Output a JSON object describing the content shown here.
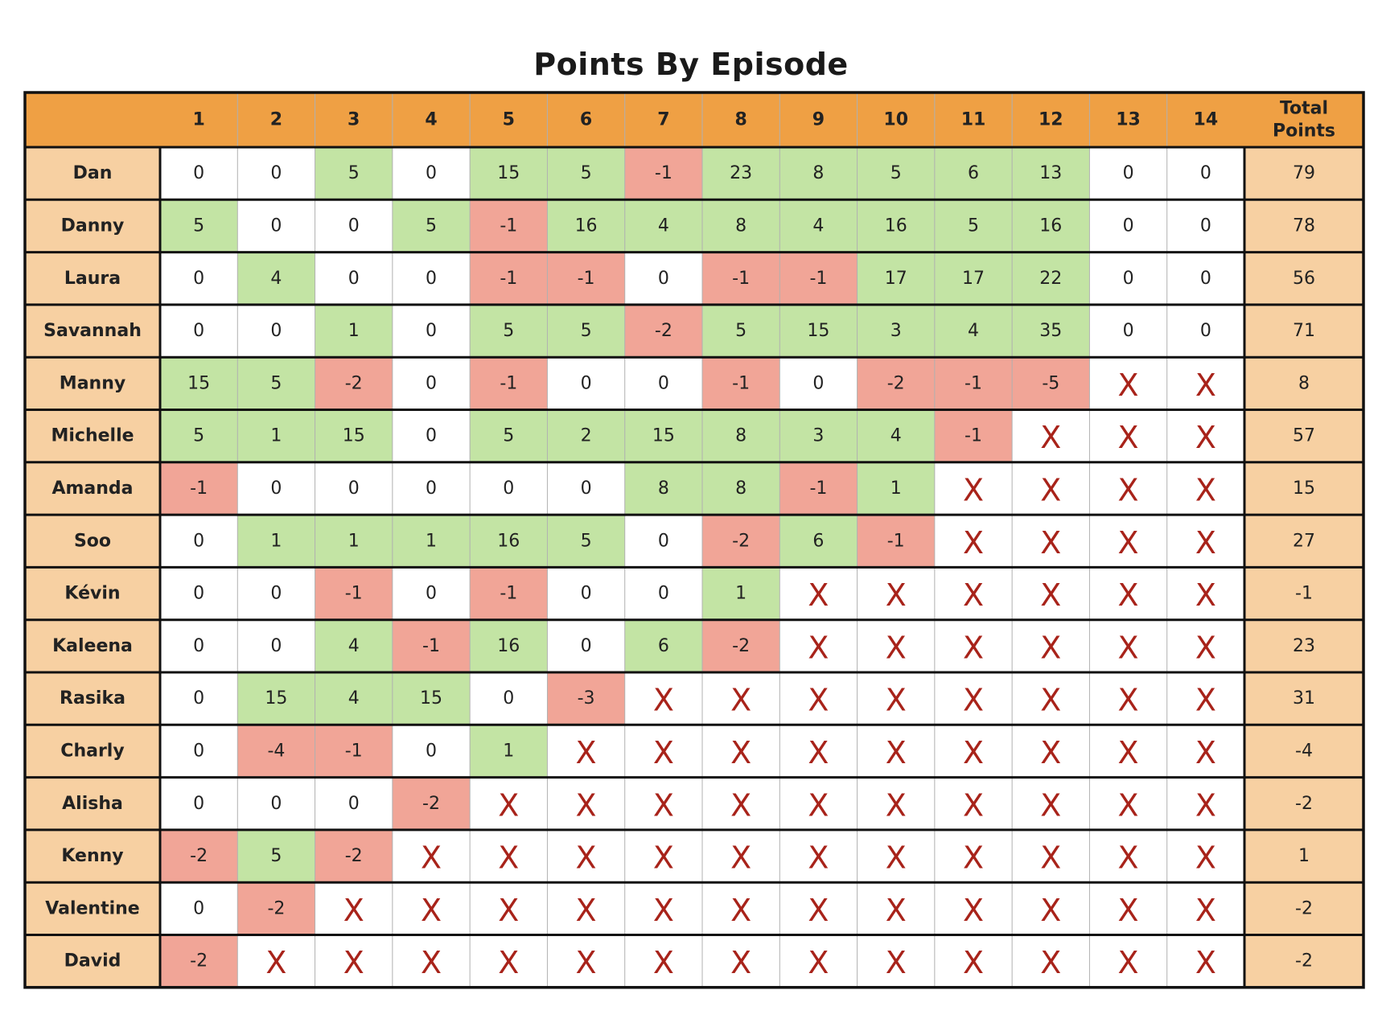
{
  "chart_data": {
    "type": "table",
    "title": "Points By Episode",
    "columns": [
      "1",
      "2",
      "3",
      "4",
      "5",
      "6",
      "7",
      "8",
      "9",
      "10",
      "11",
      "12",
      "13",
      "14"
    ],
    "total_header": [
      "Total",
      "Points"
    ],
    "eliminated_symbol": "X",
    "rows": [
      {
        "name": "Dan",
        "points": [
          0,
          0,
          5,
          0,
          15,
          5,
          -1,
          23,
          8,
          5,
          6,
          13,
          0,
          0
        ],
        "total": 79
      },
      {
        "name": "Danny",
        "points": [
          5,
          0,
          0,
          5,
          -1,
          16,
          4,
          8,
          4,
          16,
          5,
          16,
          0,
          0
        ],
        "total": 78
      },
      {
        "name": "Laura",
        "points": [
          0,
          4,
          0,
          0,
          -1,
          -1,
          0,
          -1,
          -1,
          17,
          17,
          22,
          0,
          0
        ],
        "total": 56
      },
      {
        "name": "Savannah",
        "points": [
          0,
          0,
          1,
          0,
          5,
          5,
          -2,
          5,
          15,
          3,
          4,
          35,
          0,
          0
        ],
        "total": 71
      },
      {
        "name": "Manny",
        "points": [
          15,
          5,
          -2,
          0,
          -1,
          0,
          0,
          -1,
          0,
          -2,
          -1,
          -5,
          null,
          null
        ],
        "total": 8
      },
      {
        "name": "Michelle",
        "points": [
          5,
          1,
          15,
          0,
          5,
          2,
          15,
          8,
          3,
          4,
          -1,
          null,
          null,
          null
        ],
        "total": 57
      },
      {
        "name": "Amanda",
        "points": [
          -1,
          0,
          0,
          0,
          0,
          0,
          8,
          8,
          -1,
          1,
          null,
          null,
          null,
          null
        ],
        "total": 15
      },
      {
        "name": "Soo",
        "points": [
          0,
          1,
          1,
          1,
          16,
          5,
          0,
          -2,
          6,
          -1,
          null,
          null,
          null,
          null
        ],
        "total": 27
      },
      {
        "name": "Kévin",
        "points": [
          0,
          0,
          -1,
          0,
          -1,
          0,
          0,
          1,
          null,
          null,
          null,
          null,
          null,
          null
        ],
        "total": -1
      },
      {
        "name": "Kaleena",
        "points": [
          0,
          0,
          4,
          -1,
          16,
          0,
          6,
          -2,
          null,
          null,
          null,
          null,
          null,
          null
        ],
        "total": 23
      },
      {
        "name": "Rasika",
        "points": [
          0,
          15,
          4,
          15,
          0,
          -3,
          null,
          null,
          null,
          null,
          null,
          null,
          null,
          null
        ],
        "total": 31
      },
      {
        "name": "Charly",
        "points": [
          0,
          -4,
          -1,
          0,
          1,
          null,
          null,
          null,
          null,
          null,
          null,
          null,
          null,
          null
        ],
        "total": -4
      },
      {
        "name": "Alisha",
        "points": [
          0,
          0,
          0,
          -2,
          null,
          null,
          null,
          null,
          null,
          null,
          null,
          null,
          null,
          null
        ],
        "total": -2
      },
      {
        "name": "Kenny",
        "points": [
          -2,
          5,
          -2,
          null,
          null,
          null,
          null,
          null,
          null,
          null,
          null,
          null,
          null,
          null
        ],
        "total": 1
      },
      {
        "name": "Valentine",
        "points": [
          0,
          -2,
          null,
          null,
          null,
          null,
          null,
          null,
          null,
          null,
          null,
          null,
          null,
          null
        ],
        "total": -2
      },
      {
        "name": "David",
        "points": [
          -2,
          null,
          null,
          null,
          null,
          null,
          null,
          null,
          null,
          null,
          null,
          null,
          null,
          null
        ],
        "total": -2
      }
    ],
    "colors": {
      "header_bg": "#EFA044",
      "name_bg": "#F7D0A2",
      "total_bg": "#F7D0A2",
      "positive_bg": "#C3E4A4",
      "negative_bg": "#F1A597",
      "zero_bg": "#FFFFFF",
      "eliminated_mark": "#A8231A",
      "border": "#111111",
      "inner_line": "#B0B0B0"
    }
  }
}
